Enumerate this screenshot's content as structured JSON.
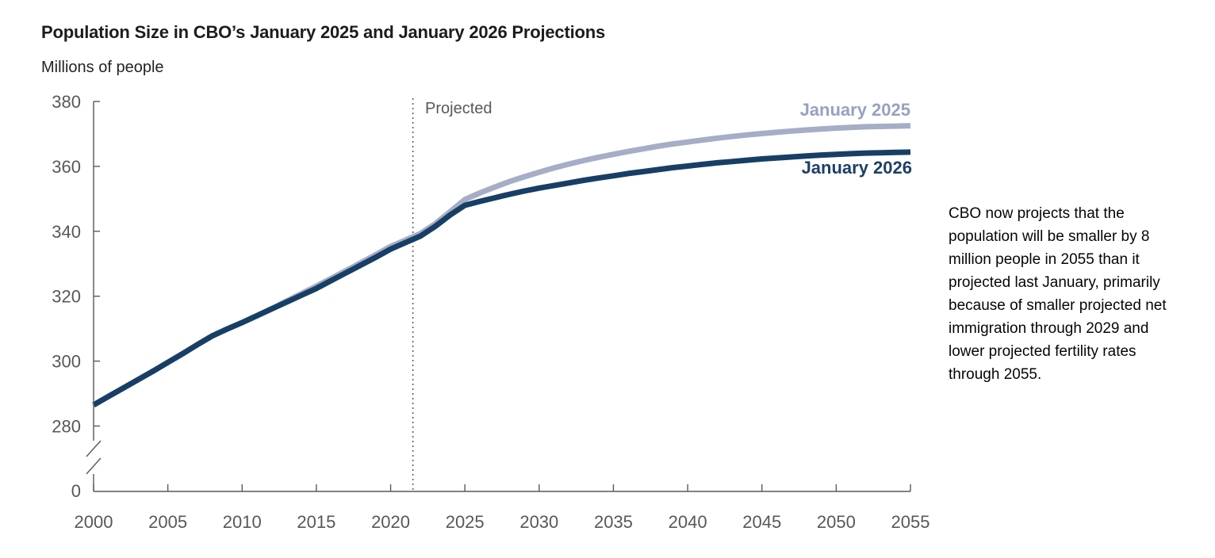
{
  "header": {
    "title": "Population Size in CBO’s January 2025 and January 2026 Projections",
    "subtitle": "Millions of people"
  },
  "annotations": {
    "projected_label": "Projected",
    "note": "CBO now projects that the population will be smaller by 8 million people in 2055 than it projected last January, primarily because of smaller projected net immigration through 2029 and lower projected fertility rates through 2055."
  },
  "legend": {
    "jan2025_label": "January 2025",
    "jan2026_label": "January 2026"
  },
  "colors": {
    "series_jan2025": "#a6adc6",
    "series_jan2026": "#173f66",
    "legend_jan2025_text": "#98a1bf",
    "legend_jan2026_text": "#1e3f66",
    "axis": "#58595b",
    "tick_label": "#57585a",
    "divider": "#58595b"
  },
  "chart_data": {
    "type": "line",
    "title": "Population Size in CBO’s January 2025 and January 2026 Projections",
    "ylabel": "Millions of people",
    "xlabel": "",
    "x_ticks": [
      2000,
      2005,
      2010,
      2015,
      2020,
      2025,
      2030,
      2035,
      2040,
      2045,
      2050,
      2055
    ],
    "y_ticks": [
      280,
      300,
      320,
      340,
      360,
      380
    ],
    "y_zero_label": "0",
    "y_axis_break": true,
    "xlim": [
      2000,
      2055
    ],
    "ylim_upper_segment": [
      272,
      380
    ],
    "grid": false,
    "projected_divider_year": 2021.5,
    "projected_divider_label": "Projected",
    "legend_position": "right-of-line-ends",
    "x": [
      2000,
      2001,
      2002,
      2003,
      2004,
      2005,
      2006,
      2007,
      2008,
      2009,
      2010,
      2011,
      2012,
      2013,
      2014,
      2015,
      2016,
      2017,
      2018,
      2019,
      2020,
      2021,
      2022,
      2023,
      2024,
      2025,
      2026,
      2027,
      2028,
      2029,
      2030,
      2031,
      2032,
      2033,
      2034,
      2035,
      2036,
      2037,
      2038,
      2039,
      2040,
      2041,
      2042,
      2043,
      2044,
      2045,
      2046,
      2047,
      2048,
      2049,
      2050,
      2051,
      2052,
      2053,
      2054,
      2055
    ],
    "series": [
      {
        "name": "January 2025",
        "color": "#a6adc6",
        "values": [
          286.5,
          289.1,
          291.7,
          294.3,
          296.9,
          299.6,
          302.3,
          305.1,
          307.8,
          309.9,
          311.9,
          314.0,
          316.2,
          318.5,
          320.8,
          323.1,
          325.5,
          327.9,
          330.3,
          332.8,
          335.3,
          337.3,
          339.3,
          342.3,
          346.0,
          349.8,
          351.8,
          353.6,
          355.3,
          356.8,
          358.2,
          359.5,
          360.7,
          361.8,
          362.8,
          363.7,
          364.6,
          365.4,
          366.2,
          366.9,
          367.5,
          368.1,
          368.7,
          369.2,
          369.7,
          370.1,
          370.5,
          370.9,
          371.2,
          371.5,
          371.8,
          372.0,
          372.2,
          372.3,
          372.4,
          372.5
        ]
      },
      {
        "name": "January 2026",
        "color": "#173f66",
        "values": [
          286.5,
          289.1,
          291.7,
          294.3,
          296.9,
          299.6,
          302.3,
          305.1,
          307.8,
          309.9,
          311.9,
          314.0,
          316.1,
          318.2,
          320.3,
          322.4,
          324.8,
          327.2,
          329.6,
          332.0,
          334.5,
          336.5,
          338.5,
          341.5,
          345.0,
          348.0,
          349.2,
          350.3,
          351.4,
          352.4,
          353.3,
          354.1,
          354.9,
          355.7,
          356.4,
          357.1,
          357.8,
          358.4,
          359.0,
          359.6,
          360.1,
          360.6,
          361.1,
          361.5,
          361.9,
          362.3,
          362.6,
          362.9,
          363.2,
          363.5,
          363.7,
          363.9,
          364.1,
          364.2,
          364.3,
          364.4
        ]
      }
    ]
  }
}
